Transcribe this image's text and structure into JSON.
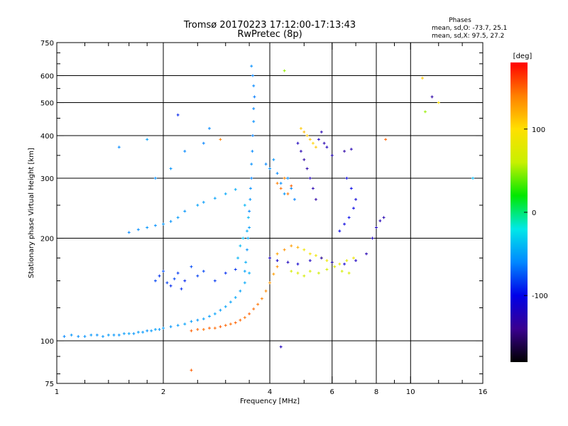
{
  "chart_data": {
    "type": "scatter",
    "title": "Tromsø 20170223 17:12:00-17:13:43",
    "subtitle": "RwPretec (8p)",
    "phases_info": {
      "heading": "Phases",
      "line_o": "mean, sd,O: -73.7, 25.1",
      "line_x": "mean, sd,X:  97.5, 27.2"
    },
    "xlabel": "Frequency [MHz]",
    "ylabel": "Stationary phase Virtual Height [km]",
    "x_scale": "log",
    "y_scale": "log",
    "xlim": [
      1,
      16
    ],
    "ylim": [
      75,
      750
    ],
    "grid": true,
    "x_major_ticks": [
      1,
      2,
      4,
      6,
      8,
      10,
      16
    ],
    "x_minor_ticks": [
      1.2,
      1.4,
      1.6,
      1.8,
      2.5,
      3,
      3.5,
      5,
      7,
      9,
      12,
      14
    ],
    "x_gridlines": [
      2,
      4,
      6,
      8,
      10
    ],
    "y_major_ticks": [
      75,
      100,
      200,
      300,
      400,
      500,
      600,
      750
    ],
    "y_minor_ticks": [
      80,
      90,
      125,
      150,
      175,
      250,
      350,
      450,
      550,
      650,
      700
    ],
    "y_gridlines": [
      100,
      200,
      300,
      400,
      500,
      600
    ],
    "colorbar": {
      "label": "[deg]",
      "range": [
        -180,
        180
      ],
      "ticks": [
        100,
        0,
        -100
      ],
      "colors": [
        "#000000",
        "#3a0090",
        "#0000e8",
        "#0088ff",
        "#00e8e8",
        "#00e800",
        "#c8f000",
        "#ffe000",
        "#ff8000",
        "#ff0000"
      ]
    },
    "series": [
      {
        "points": [
          [
            1.05,
            103,
            -60
          ],
          [
            1.1,
            104,
            -55
          ],
          [
            1.15,
            103,
            -58
          ],
          [
            1.2,
            103,
            -56
          ],
          [
            1.25,
            104,
            -54
          ],
          [
            1.3,
            104,
            -57
          ],
          [
            1.35,
            103,
            -55
          ],
          [
            1.4,
            104,
            -52
          ],
          [
            1.45,
            104,
            -54
          ],
          [
            1.5,
            104,
            -56
          ],
          [
            1.55,
            105,
            -53
          ],
          [
            1.6,
            105,
            -50
          ],
          [
            1.65,
            105,
            -55
          ],
          [
            1.7,
            106,
            -52
          ],
          [
            1.75,
            106,
            -54
          ],
          [
            1.8,
            107,
            -56
          ],
          [
            1.85,
            107,
            -53
          ],
          [
            1.9,
            108,
            -50
          ],
          [
            1.95,
            108,
            -54
          ],
          [
            2.0,
            109,
            -52
          ],
          [
            2.1,
            110,
            -55
          ],
          [
            2.2,
            111,
            -53
          ],
          [
            2.3,
            112,
            -50
          ],
          [
            2.4,
            114,
            -52
          ],
          [
            2.5,
            115,
            -54
          ],
          [
            2.6,
            116,
            -51
          ],
          [
            2.7,
            118,
            -53
          ],
          [
            2.8,
            120,
            -50
          ],
          [
            2.9,
            123,
            -52
          ],
          [
            3.0,
            126,
            -49
          ],
          [
            3.1,
            130,
            -50
          ],
          [
            3.2,
            134,
            -48
          ],
          [
            3.3,
            140,
            -50
          ],
          [
            3.4,
            148,
            -47
          ],
          [
            3.5,
            158,
            -45
          ]
        ]
      },
      {
        "points": [
          [
            2.4,
            107,
            150
          ],
          [
            2.5,
            108,
            148
          ],
          [
            2.6,
            108,
            145
          ],
          [
            2.7,
            109,
            150
          ],
          [
            2.8,
            109,
            147
          ],
          [
            2.9,
            110,
            152
          ],
          [
            3.0,
            111,
            149
          ],
          [
            3.1,
            112,
            146
          ],
          [
            3.2,
            113,
            150
          ],
          [
            3.3,
            115,
            148
          ],
          [
            3.4,
            117,
            145
          ],
          [
            3.5,
            120,
            150
          ],
          [
            3.6,
            124,
            147
          ],
          [
            3.7,
            128,
            144
          ],
          [
            3.8,
            133,
            140
          ],
          [
            3.9,
            140,
            135
          ],
          [
            4.0,
            148,
            130
          ],
          [
            4.1,
            157,
            128
          ],
          [
            4.2,
            165,
            132
          ]
        ]
      },
      {
        "points": [
          [
            3.4,
            160,
            -50
          ],
          [
            3.42,
            170,
            -45
          ],
          [
            3.45,
            185,
            -55
          ],
          [
            3.47,
            200,
            -48
          ],
          [
            3.5,
            215,
            -52
          ],
          [
            3.5,
            240,
            -60
          ],
          [
            3.52,
            260,
            -55
          ],
          [
            3.53,
            280,
            -58
          ],
          [
            3.55,
            300,
            -62
          ],
          [
            3.55,
            330,
            -57
          ],
          [
            3.57,
            360,
            -60
          ],
          [
            3.58,
            400,
            -63
          ],
          [
            3.6,
            440,
            -58
          ],
          [
            3.6,
            480,
            -61
          ],
          [
            3.62,
            520,
            -64
          ],
          [
            3.6,
            560,
            -60
          ],
          [
            3.58,
            600,
            -62
          ],
          [
            3.55,
            640,
            -58
          ],
          [
            3.45,
            210,
            -45
          ],
          [
            3.48,
            230,
            -40
          ],
          [
            3.4,
            250,
            -42
          ],
          [
            3.36,
            200,
            -38
          ],
          [
            3.3,
            190,
            -40
          ],
          [
            3.25,
            175,
            -42
          ]
        ]
      },
      {
        "points": [
          [
            1.6,
            208,
            -60
          ],
          [
            1.7,
            212,
            -58
          ],
          [
            1.8,
            215,
            -55
          ],
          [
            1.9,
            218,
            -57
          ],
          [
            2.0,
            220,
            -54
          ],
          [
            2.1,
            224,
            -56
          ],
          [
            2.2,
            230,
            -52
          ],
          [
            2.3,
            240,
            -55
          ],
          [
            2.5,
            250,
            -50
          ],
          [
            2.6,
            255,
            -52
          ],
          [
            2.8,
            262,
            -50
          ],
          [
            3.0,
            270,
            -48
          ],
          [
            3.2,
            278,
            -46
          ]
        ]
      },
      {
        "points": [
          [
            1.9,
            150,
            -80
          ],
          [
            1.95,
            155,
            -85
          ],
          [
            2.0,
            160,
            -78
          ],
          [
            2.05,
            148,
            -82
          ],
          [
            2.1,
            145,
            -88
          ],
          [
            2.15,
            152,
            -80
          ],
          [
            2.2,
            158,
            -84
          ],
          [
            2.25,
            142,
            -86
          ],
          [
            2.3,
            150,
            -90
          ],
          [
            2.4,
            165,
            -78
          ],
          [
            2.5,
            155,
            -82
          ],
          [
            2.6,
            160,
            -80
          ],
          [
            2.8,
            150,
            -84
          ],
          [
            3.0,
            158,
            -88
          ],
          [
            3.2,
            162,
            -86
          ]
        ]
      },
      {
        "points": [
          [
            3.9,
            330,
            -60
          ],
          [
            4.0,
            320,
            -58
          ],
          [
            4.1,
            340,
            -55
          ],
          [
            4.2,
            310,
            -60
          ],
          [
            4.3,
            290,
            -58
          ],
          [
            4.4,
            270,
            -55
          ],
          [
            4.5,
            300,
            -57
          ],
          [
            4.6,
            280,
            -60
          ],
          [
            4.7,
            260,
            -62
          ]
        ]
      },
      {
        "points": [
          [
            4.2,
            290,
            140
          ],
          [
            4.3,
            280,
            145
          ],
          [
            4.4,
            300,
            138
          ],
          [
            4.5,
            270,
            142
          ],
          [
            4.6,
            285,
            150
          ]
        ]
      },
      {
        "points": [
          [
            4.8,
            380,
            -120
          ],
          [
            4.9,
            360,
            -125
          ],
          [
            5.0,
            340,
            -130
          ],
          [
            5.1,
            320,
            -128
          ],
          [
            5.2,
            300,
            -122
          ],
          [
            5.3,
            280,
            -126
          ],
          [
            5.4,
            260,
            -130
          ],
          [
            5.5,
            390,
            -118
          ],
          [
            5.6,
            410,
            -124
          ],
          [
            5.7,
            380,
            -126
          ],
          [
            5.8,
            370,
            -120
          ],
          [
            6.0,
            350,
            -122
          ],
          [
            6.5,
            360,
            -130
          ],
          [
            6.8,
            365,
            -125
          ]
        ]
      },
      {
        "points": [
          [
            4.9,
            420,
            110
          ],
          [
            5.0,
            410,
            115
          ],
          [
            5.1,
            400,
            108
          ],
          [
            5.2,
            390,
            112
          ],
          [
            5.3,
            380,
            105
          ],
          [
            5.4,
            370,
            110
          ]
        ]
      },
      {
        "points": [
          [
            4.0,
            175,
            130
          ],
          [
            4.2,
            180,
            125
          ],
          [
            4.4,
            185,
            132
          ],
          [
            4.6,
            190,
            128
          ],
          [
            4.8,
            188,
            120
          ],
          [
            5.0,
            185,
            90
          ],
          [
            5.2,
            180,
            95
          ],
          [
            5.4,
            178,
            88
          ],
          [
            5.6,
            175,
            92
          ],
          [
            5.8,
            172,
            86
          ],
          [
            6.0,
            170,
            90
          ],
          [
            6.3,
            168,
            85
          ],
          [
            6.6,
            172,
            80
          ],
          [
            6.9,
            175,
            88
          ]
        ]
      },
      {
        "points": [
          [
            4.6,
            160,
            70
          ],
          [
            4.8,
            158,
            75
          ],
          [
            5.0,
            155,
            68
          ],
          [
            5.2,
            160,
            72
          ],
          [
            5.5,
            158,
            65
          ],
          [
            5.8,
            162,
            70
          ],
          [
            6.1,
            165,
            75
          ],
          [
            6.4,
            160,
            68
          ],
          [
            6.7,
            158,
            72
          ]
        ]
      },
      {
        "points": [
          [
            4.0,
            175,
            -110
          ],
          [
            4.2,
            172,
            -115
          ],
          [
            4.5,
            170,
            -120
          ],
          [
            4.8,
            168,
            -112
          ],
          [
            5.2,
            172,
            -118
          ],
          [
            5.6,
            175,
            -122
          ],
          [
            6.0,
            170,
            -115
          ],
          [
            6.5,
            168,
            -110
          ],
          [
            7.0,
            172,
            -118
          ],
          [
            7.5,
            180,
            -125
          ],
          [
            7.8,
            200,
            -120
          ],
          [
            8.0,
            215,
            -118
          ],
          [
            8.2,
            225,
            -122
          ],
          [
            8.4,
            230,
            -126
          ]
        ]
      },
      {
        "points": [
          [
            6.3,
            210,
            -100
          ],
          [
            6.5,
            220,
            -105
          ],
          [
            6.7,
            230,
            -98
          ],
          [
            6.9,
            245,
            -102
          ],
          [
            7.0,
            260,
            -108
          ],
          [
            6.8,
            280,
            -100
          ],
          [
            6.6,
            300,
            -104
          ]
        ]
      },
      {
        "points": [
          [
            8.5,
            390,
            150
          ],
          [
            10.8,
            590,
            110
          ],
          [
            11.0,
            470,
            50
          ],
          [
            11.5,
            520,
            -130
          ],
          [
            12.0,
            500,
            100
          ],
          [
            15.0,
            300,
            -40
          ],
          [
            4.3,
            96,
            -120
          ],
          [
            2.4,
            82,
            150
          ],
          [
            4.4,
            620,
            50
          ],
          [
            2.2,
            460,
            -90
          ],
          [
            1.5,
            370,
            -60
          ],
          [
            1.8,
            390,
            -50
          ],
          [
            2.1,
            320,
            -55
          ],
          [
            2.3,
            360,
            -60
          ],
          [
            1.9,
            300,
            -58
          ],
          [
            2.6,
            380,
            -62
          ],
          [
            2.7,
            420,
            -60
          ],
          [
            2.9,
            390,
            140
          ]
        ]
      }
    ]
  }
}
